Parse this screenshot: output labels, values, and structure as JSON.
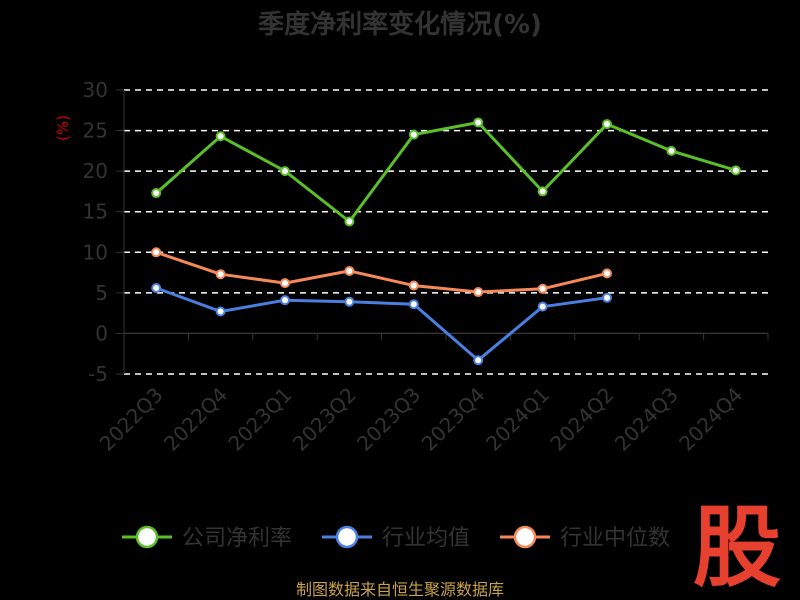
{
  "chart_data": {
    "type": "line",
    "title": "季度净利率变化情况(%)",
    "ylabel": "(%)",
    "xlabel": "",
    "categories": [
      "2022Q3",
      "2022Q4",
      "2023Q1",
      "2023Q2",
      "2023Q3",
      "2023Q4",
      "2024Q1",
      "2024Q2",
      "2024Q3",
      "2024Q4"
    ],
    "ylim": [
      -5,
      30
    ],
    "yticks": [
      30,
      25,
      20,
      15,
      10,
      5,
      0,
      -5
    ],
    "grid": true,
    "legend_position": "bottom",
    "series": [
      {
        "name": "公司净利率",
        "color": "#5bbf2a",
        "values": [
          17.3,
          24.3,
          20.0,
          13.8,
          24.5,
          26.0,
          17.5,
          25.8,
          22.5,
          20.1
        ]
      },
      {
        "name": "行业均值",
        "color": "#4a7fe0",
        "values": [
          5.6,
          2.7,
          4.1,
          3.9,
          3.6,
          -3.3,
          3.3,
          4.4,
          null,
          null
        ]
      },
      {
        "name": "行业中位数",
        "color": "#f5895a",
        "values": [
          10.0,
          7.3,
          6.2,
          7.7,
          5.9,
          5.1,
          5.5,
          7.4,
          null,
          null
        ]
      }
    ]
  },
  "footer": {
    "source": "制图数据来自恒生聚源数据库",
    "brand": "股"
  }
}
